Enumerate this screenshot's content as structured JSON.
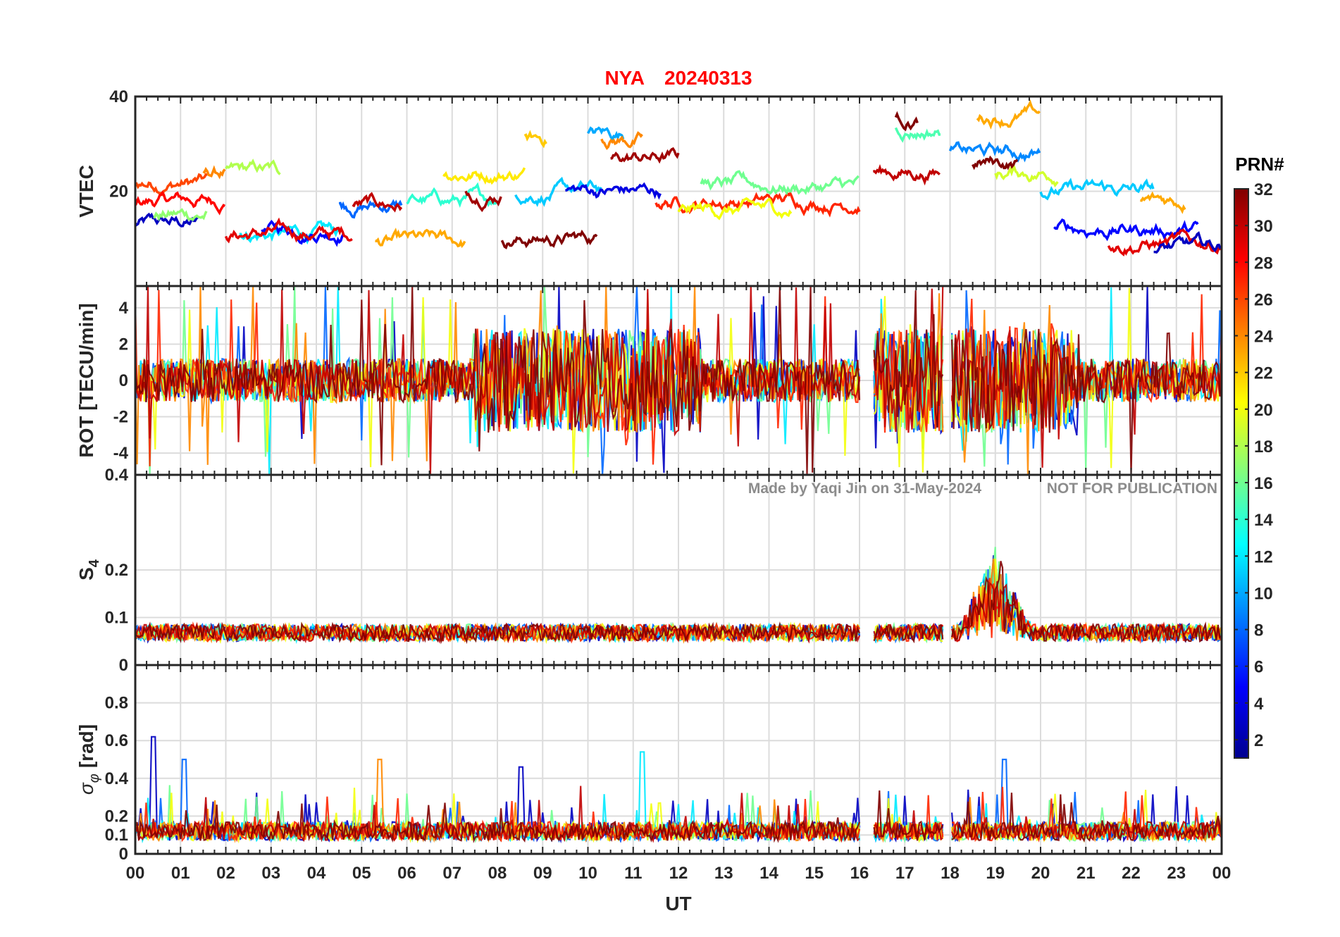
{
  "chart_data": {
    "type": "line",
    "title": {
      "station": "NYA",
      "date": "20240313"
    },
    "xlabel": "UT",
    "x_ticks": [
      "00",
      "01",
      "02",
      "03",
      "04",
      "05",
      "06",
      "07",
      "08",
      "09",
      "10",
      "11",
      "12",
      "13",
      "14",
      "15",
      "16",
      "17",
      "18",
      "19",
      "20",
      "21",
      "22",
      "23",
      "00"
    ],
    "xlim_hours": [
      0,
      24
    ],
    "data_gaps_hours": [
      [
        16.0,
        16.3
      ],
      [
        17.85,
        18.0
      ]
    ],
    "watermark": {
      "author": "Made by Yaqi Jin on 31-May-2024",
      "notice": "NOT FOR PUBLICATION"
    },
    "colorbar": {
      "title": "PRN#",
      "range": [
        1,
        32
      ],
      "ticks": [
        "2",
        "4",
        "6",
        "8",
        "10",
        "12",
        "14",
        "16",
        "18",
        "20",
        "22",
        "24",
        "26",
        "28",
        "30",
        "32"
      ],
      "colormap": "jet",
      "colors": [
        "#00008f",
        "#0000ff",
        "#0080ff",
        "#00ffff",
        "#80ff80",
        "#ffff00",
        "#ff8000",
        "#ff0000",
        "#800000"
      ]
    },
    "panels": [
      {
        "id": "vtec",
        "ylabel": "VTEC",
        "ylim": [
          0,
          40
        ],
        "yticks": [
          {
            "v": 20,
            "t": "20"
          },
          {
            "v": 40,
            "t": "40"
          }
        ],
        "series_summary": {
          "prn_tracks": [
            {
              "prn": 3,
              "start": 0.0,
              "end": 1.4,
              "level": 13
            },
            {
              "prn": 26,
              "start": 0.0,
              "end": 1.6,
              "level": 22
            },
            {
              "prn": 28,
              "start": 0.0,
              "end": 2.0,
              "level": 18
            },
            {
              "prn": 17,
              "start": 0.4,
              "end": 1.6,
              "level": 15
            },
            {
              "prn": 24,
              "start": 1.5,
              "end": 2.0,
              "level": 24
            },
            {
              "prn": 18,
              "start": 2.0,
              "end": 3.2,
              "level": 24
            },
            {
              "prn": 12,
              "start": 2.3,
              "end": 4.5,
              "level": 11
            },
            {
              "prn": 5,
              "start": 2.8,
              "end": 4.6,
              "level": 12
            },
            {
              "prn": 29,
              "start": 2.0,
              "end": 4.8,
              "level": 11
            },
            {
              "prn": 8,
              "start": 4.5,
              "end": 5.9,
              "level": 17
            },
            {
              "prn": 30,
              "start": 4.8,
              "end": 5.9,
              "level": 17
            },
            {
              "prn": 23,
              "start": 5.3,
              "end": 7.3,
              "level": 9
            },
            {
              "prn": 14,
              "start": 6.0,
              "end": 8.0,
              "level": 18
            },
            {
              "prn": 21,
              "start": 6.8,
              "end": 8.6,
              "level": 24
            },
            {
              "prn": 31,
              "start": 7.3,
              "end": 8.1,
              "level": 20
            },
            {
              "prn": 32,
              "start": 8.1,
              "end": 10.2,
              "level": 10
            },
            {
              "prn": 11,
              "start": 8.4,
              "end": 10.3,
              "level": 20
            },
            {
              "prn": 22,
              "start": 8.6,
              "end": 9.1,
              "level": 31
            },
            {
              "prn": 4,
              "start": 9.5,
              "end": 11.6,
              "level": 20
            },
            {
              "prn": 10,
              "start": 10.0,
              "end": 10.8,
              "level": 32
            },
            {
              "prn": 24,
              "start": 10.3,
              "end": 11.2,
              "level": 31
            },
            {
              "prn": 31,
              "start": 10.5,
              "end": 12.0,
              "level": 27
            },
            {
              "prn": 27,
              "start": 11.5,
              "end": 16.0,
              "level": 18
            },
            {
              "prn": 16,
              "start": 12.5,
              "end": 16.0,
              "level": 21
            },
            {
              "prn": 20,
              "start": 12.0,
              "end": 14.5,
              "level": 16
            },
            {
              "prn": 30,
              "start": 16.3,
              "end": 17.8,
              "level": 24
            },
            {
              "prn": 15,
              "start": 16.8,
              "end": 17.8,
              "level": 33
            },
            {
              "prn": 32,
              "start": 16.8,
              "end": 17.3,
              "level": 35
            },
            {
              "prn": 9,
              "start": 18.0,
              "end": 20.0,
              "level": 28
            },
            {
              "prn": 23,
              "start": 18.6,
              "end": 20.0,
              "level": 36
            },
            {
              "prn": 32,
              "start": 18.5,
              "end": 19.5,
              "level": 26
            },
            {
              "prn": 19,
              "start": 19.0,
              "end": 20.4,
              "level": 24
            },
            {
              "prn": 11,
              "start": 20.0,
              "end": 22.5,
              "level": 20
            },
            {
              "prn": 5,
              "start": 20.3,
              "end": 23.5,
              "level": 12
            },
            {
              "prn": 23,
              "start": 22.2,
              "end": 23.2,
              "level": 18
            },
            {
              "prn": 29,
              "start": 21.5,
              "end": 24.0,
              "level": 9
            },
            {
              "prn": 3,
              "start": 22.5,
              "end": 24.0,
              "level": 8
            }
          ]
        }
      },
      {
        "id": "rot",
        "ylabel": "ROT [TECU/min]",
        "ylim": [
          -5.2,
          5.2
        ],
        "yticks": [
          {
            "v": 4,
            "t": "4"
          },
          {
            "v": 2,
            "t": "2"
          },
          {
            "v": 0,
            "t": "0"
          },
          {
            "v": -2,
            "t": "-2"
          },
          {
            "v": -4,
            "t": "-4"
          }
        ],
        "series_summary": {
          "baseline": 0,
          "typical_amplitude": 1.2,
          "active_hours": [
            [
              7.5,
              12.5
            ],
            [
              16.3,
              20.8
            ]
          ],
          "peak_amplitude": 5.2
        }
      },
      {
        "id": "s4",
        "ylabel": "S4",
        "ylim": [
          0,
          0.4
        ],
        "yticks": [
          {
            "v": 0,
            "t": "0"
          },
          {
            "v": 0.1,
            "t": "0.1"
          },
          {
            "v": 0.2,
            "t": "0.2"
          },
          {
            "v": 0.4,
            "t": "0.4"
          }
        ],
        "series_summary": {
          "baseline": 0.05,
          "typical_max": 0.11,
          "peak_time_h": 19.0,
          "peak_value": 0.23
        }
      },
      {
        "id": "sigma_phi",
        "ylabel": "σφ [rad]",
        "ylim": [
          0,
          1.0
        ],
        "yticks": [
          {
            "v": 0,
            "t": "0"
          },
          {
            "v": 0.1,
            "t": "0.1"
          },
          {
            "v": 0.2,
            "t": "0.2"
          },
          {
            "v": 0.4,
            "t": "0.4"
          },
          {
            "v": 0.6,
            "t": "0.6"
          },
          {
            "v": 0.8,
            "t": "0.8"
          }
        ],
        "series_summary": {
          "baseline": 0.1,
          "peaks": [
            [
              0.4,
              0.62
            ],
            [
              1.1,
              0.5
            ],
            [
              5.4,
              0.5
            ],
            [
              11.2,
              0.54
            ],
            [
              19.2,
              0.5
            ],
            [
              8.5,
              0.46
            ]
          ]
        }
      }
    ]
  }
}
